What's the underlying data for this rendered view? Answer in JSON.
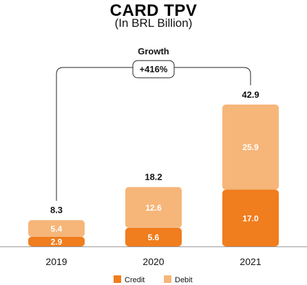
{
  "title": "CARD TPV",
  "subtitle": "(In BRL Billion)",
  "chart_data": {
    "type": "bar",
    "stacked": true,
    "title": "CARD TPV",
    "subtitle": "(In BRL Billion)",
    "categories": [
      "2019",
      "2020",
      "2021"
    ],
    "series": [
      {
        "name": "Credit",
        "values": [
          2.9,
          5.6,
          17.0
        ],
        "labels": [
          "2.9",
          "5.6",
          "17.0"
        ],
        "color": "#F07D1E"
      },
      {
        "name": "Debit",
        "values": [
          5.4,
          12.6,
          25.9
        ],
        "labels": [
          "5.4",
          "12.6",
          "25.9"
        ],
        "color": "#F6B679"
      }
    ],
    "totals": [
      8.3,
      18.2,
      42.9
    ],
    "total_labels": [
      "8.3",
      "18.2",
      "42.9"
    ],
    "ylim": [
      0,
      45
    ],
    "grid": false,
    "legend": "bottom",
    "annotation": {
      "label": "Growth",
      "value": "+416%",
      "from": "2019",
      "to": "2021"
    }
  }
}
